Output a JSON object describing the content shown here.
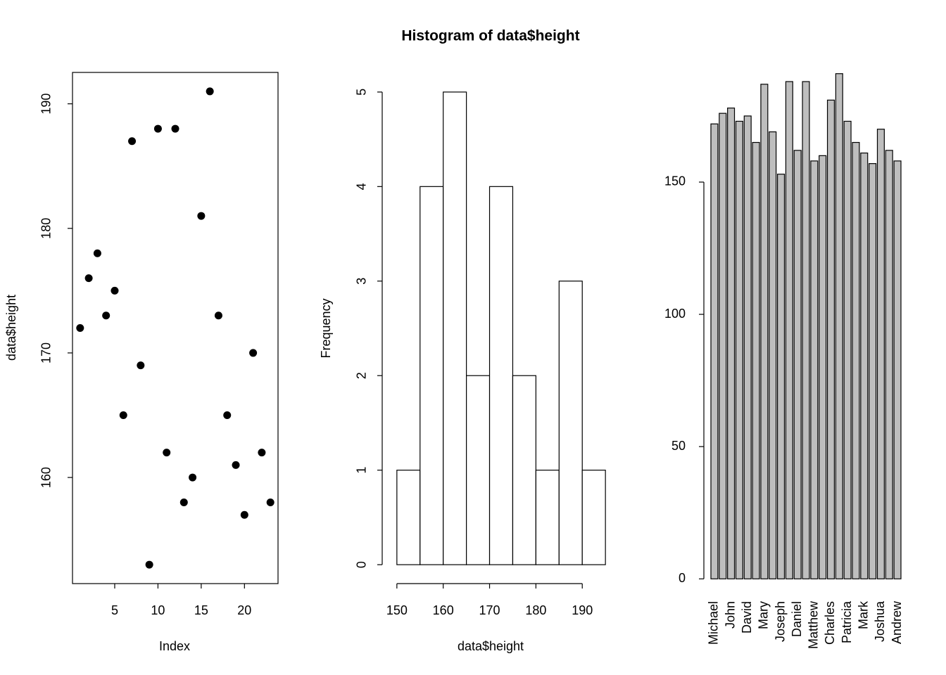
{
  "chart_data": [
    {
      "type": "scatter",
      "xlabel": "Index",
      "ylabel": "data$height",
      "x": [
        1,
        2,
        3,
        4,
        5,
        6,
        7,
        8,
        9,
        10,
        11,
        12,
        13,
        14,
        15,
        16,
        17,
        18,
        19,
        20,
        21,
        22,
        23
      ],
      "values": [
        172,
        176,
        178,
        173,
        175,
        165,
        187,
        169,
        153,
        188,
        162,
        188,
        158,
        160,
        181,
        191,
        173,
        165,
        161,
        157,
        170,
        162,
        158
      ],
      "color": "#000000",
      "xlim": [
        0.12,
        23.88
      ],
      "xticks": [
        5,
        10,
        15,
        20
      ],
      "ylim": [
        151.48,
        192.52
      ],
      "yticks": [
        160,
        170,
        180,
        190
      ]
    },
    {
      "type": "histogram",
      "title": "Histogram of data$height",
      "xlabel": "data$height",
      "ylabel": "Frequency",
      "bins": [
        150,
        155,
        160,
        165,
        170,
        175,
        180,
        185,
        190,
        195
      ],
      "values": [
        1,
        4,
        5,
        2,
        4,
        2,
        1,
        3,
        1
      ],
      "color": "#ffffff",
      "xlim": [
        148.2,
        196.8
      ],
      "xticks": [
        150,
        160,
        170,
        180,
        190
      ],
      "ylim": [
        -0.2,
        5.2
      ],
      "yticks": [
        0,
        1,
        2,
        3,
        4,
        5
      ]
    },
    {
      "type": "bar",
      "categories": [
        "Michael",
        null,
        "John",
        null,
        "David",
        null,
        "Mary",
        null,
        "Joseph",
        null,
        "Daniel",
        null,
        "Matthew",
        null,
        "Charles",
        null,
        "Patricia",
        null,
        "Mark",
        null,
        "Joshua",
        null,
        "Andrew"
      ],
      "values": [
        172,
        176,
        178,
        173,
        175,
        165,
        187,
        169,
        153,
        188,
        162,
        188,
        158,
        160,
        181,
        191,
        173,
        165,
        161,
        157,
        170,
        162,
        158
      ],
      "color": "#bebebe",
      "ylim": [
        -7.64,
        198.64
      ],
      "yticks": [
        0,
        50,
        100,
        150
      ]
    }
  ]
}
